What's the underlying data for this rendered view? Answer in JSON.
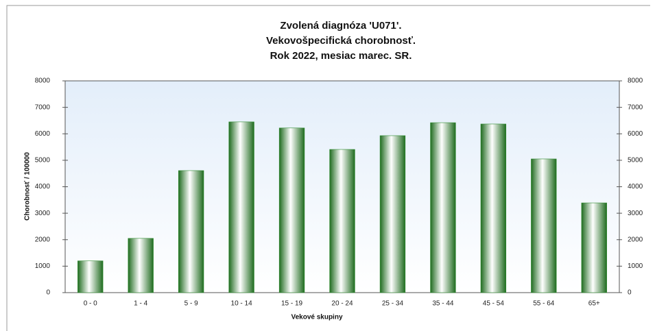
{
  "chart_data": {
    "type": "bar",
    "title": [
      "Zvolená diagnóza 'U071'.",
      "Vekovošpecifická chorobnosť.",
      "Rok 2022, mesiac marec. SR."
    ],
    "x_label": "Vekové skupiny",
    "y_label": "Chorobnosť / 100000",
    "categories": [
      "0 - 0",
      "1 - 4",
      "5 - 9",
      "10 - 14",
      "15 - 19",
      "20 - 24",
      "25 - 34",
      "35 - 44",
      "45 - 54",
      "55 - 64",
      "65+"
    ],
    "values": [
      1200,
      2050,
      4610,
      6450,
      6220,
      5410,
      5930,
      6420,
      6370,
      5050,
      3390
    ],
    "color": "#2e8b2e",
    "ylim": [
      0,
      8000
    ],
    "yticks": [
      0,
      1000,
      2000,
      3000,
      4000,
      5000,
      6000,
      7000,
      8000
    ],
    "y2lim": [
      0,
      8000
    ],
    "y2ticks": [
      0,
      1000,
      2000,
      3000,
      4000,
      5000,
      6000,
      7000,
      8000
    ]
  }
}
